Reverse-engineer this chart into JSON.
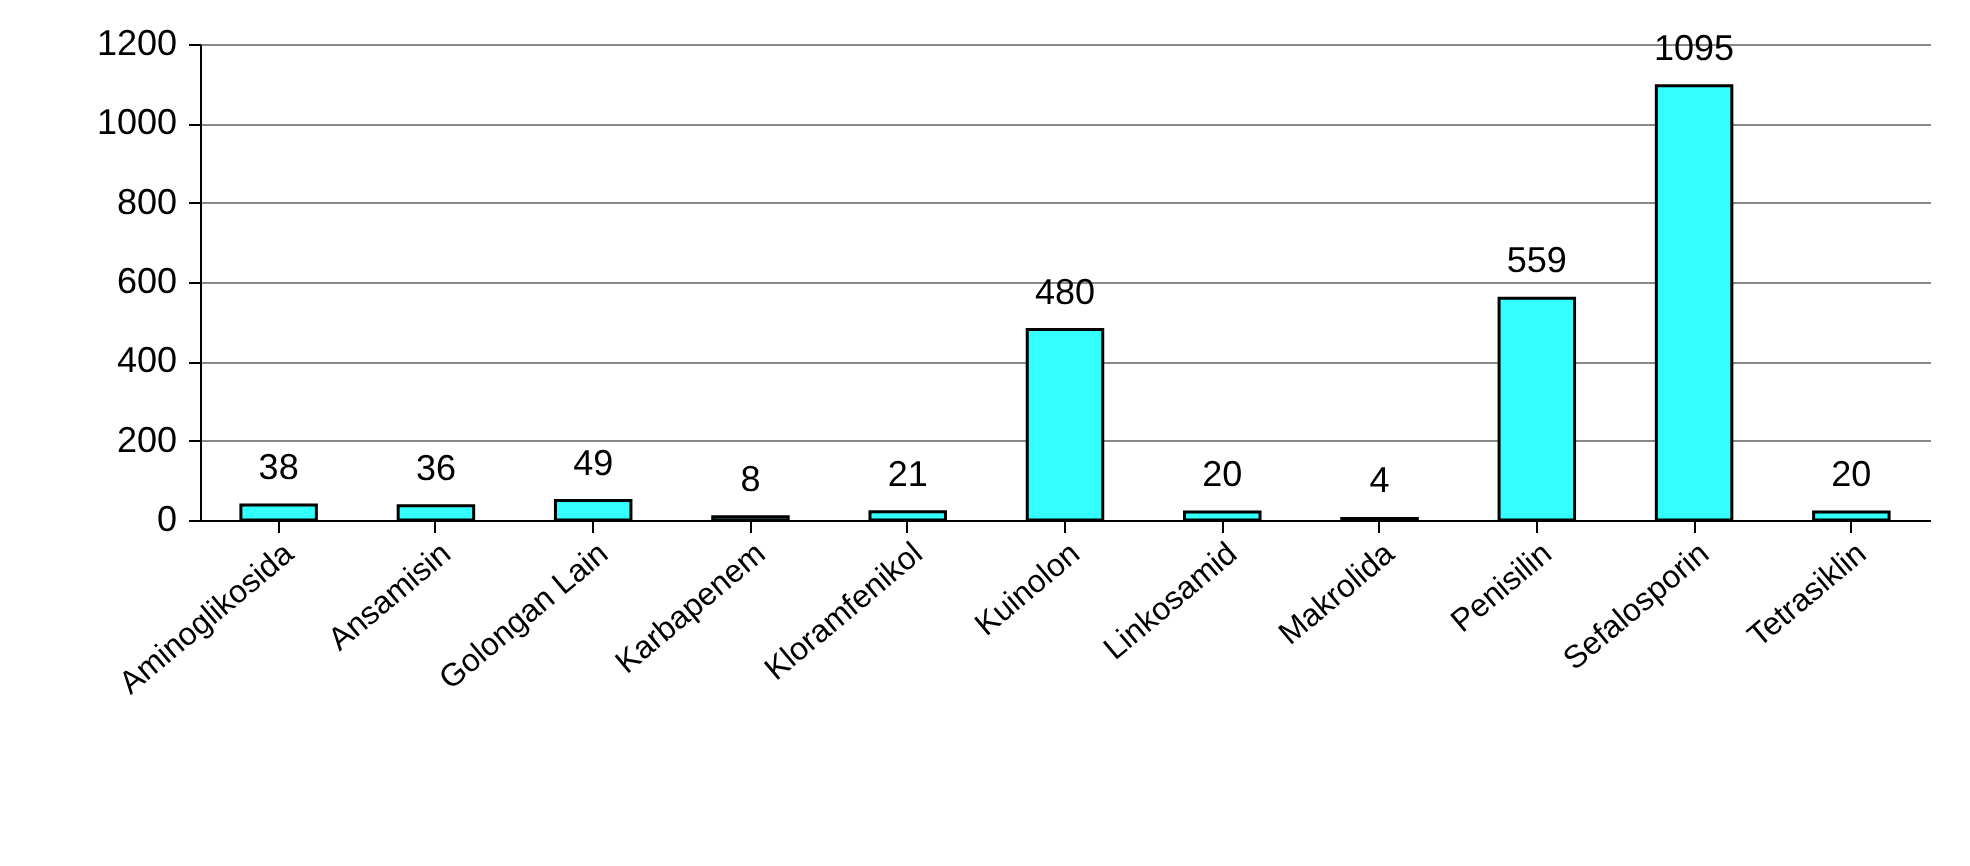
{
  "chart_data": {
    "type": "bar",
    "categories": [
      "Aminoglikosida",
      "Ansamisin",
      "Golongan Lain",
      "Karbapenem",
      "Kloramfenikol",
      "Kuinolon",
      "Linkosamid",
      "Makrolida",
      "Penisilin",
      "Sefalosporin",
      "Tetrasiklin"
    ],
    "values": [
      38,
      36,
      49,
      8,
      21,
      480,
      20,
      4,
      559,
      1095,
      20
    ],
    "color": "#33ffff",
    "ylim": [
      0,
      1200
    ],
    "yticks": [
      0,
      200,
      400,
      600,
      800,
      1000,
      1200
    ],
    "grid": "y",
    "data_labels": true
  }
}
